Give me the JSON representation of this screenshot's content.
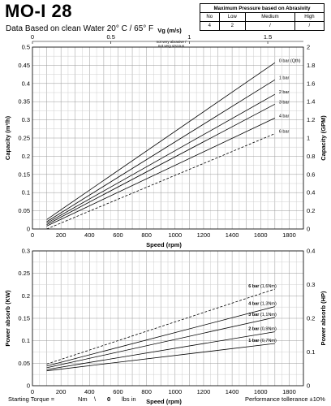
{
  "header": {
    "title": "MO-I 28",
    "subtitle": "Data Based on clean Water 20° C  /  65° F"
  },
  "abrasivity_table": {
    "title": "Maximum Pressure based on Abrasivity",
    "columns": [
      "No",
      "Low",
      "Medium",
      "High"
    ],
    "values": [
      "4",
      "2",
      "/",
      "/"
    ]
  },
  "footer": {
    "starting_torque_label": "Starting Torque =",
    "nm_unit": "Nm",
    "separator": "\\",
    "lbs_value": "0",
    "lbs_unit": "lbs  in",
    "tolerance": "Performance tollerance ±10%"
  },
  "chart_data": [
    {
      "type": "line",
      "xlabel": "Speed (rpm)",
      "ylabel": "Capacity (m³/h)",
      "ylabel_right": "Capacity (GPM)",
      "top_axis_label": "Vg (m/s)",
      "top_axis_note": [
        "not very abrasive /",
        "not very viscous"
      ],
      "xlim": [
        0,
        1900
      ],
      "ylim": [
        0,
        0.5
      ],
      "ylim_right": [
        0,
        2
      ],
      "xticks": [
        0,
        200,
        400,
        600,
        800,
        1000,
        1200,
        1400,
        1600,
        1800
      ],
      "yticks": [
        0,
        0.05,
        0.1,
        0.15,
        0.2,
        0.25,
        0.3,
        0.35,
        0.4,
        0.45,
        0.5
      ],
      "yticks_right": [
        0,
        0.2,
        0.4,
        0.6,
        0.8,
        1,
        1.2,
        1.4,
        1.6,
        1.8,
        2
      ],
      "top_ticks": [
        {
          "label": "0",
          "rpm": 0
        },
        {
          "label": "0.5",
          "rpm": 550
        },
        {
          "label": "1",
          "rpm": 1100
        },
        {
          "label": "1.5",
          "rpm": 1650
        }
      ],
      "grid": true,
      "series": [
        {
          "name": "0 bar (Qth)",
          "x": [
            100,
            1700
          ],
          "y": [
            0.026,
            0.457
          ],
          "dashed": false
        },
        {
          "name": "1 bar",
          "x": [
            100,
            1700
          ],
          "y": [
            0.02,
            0.41
          ],
          "dashed": false
        },
        {
          "name": "2 bar",
          "x": [
            100,
            1700
          ],
          "y": [
            0.016,
            0.37
          ],
          "dashed": false
        },
        {
          "name": "3 bar",
          "x": [
            100,
            1700
          ],
          "y": [
            0.012,
            0.343
          ],
          "dashed": false
        },
        {
          "name": "4 bar",
          "x": [
            100,
            1700
          ],
          "y": [
            0.008,
            0.305
          ],
          "dashed": false
        },
        {
          "name": "6 bar",
          "x": [
            100,
            1700
          ],
          "y": [
            0.0,
            0.262
          ],
          "dashed": true
        }
      ]
    },
    {
      "type": "line",
      "xlabel": "Speed (rpm)",
      "ylabel": "Power absorb (KW)",
      "ylabel_right": "Power absorb (HP)",
      "xlim": [
        0,
        1900
      ],
      "ylim": [
        0,
        0.3
      ],
      "ylim_right": [
        0,
        0.4
      ],
      "xticks": [
        0,
        200,
        400,
        600,
        800,
        1000,
        1200,
        1400,
        1600,
        1800
      ],
      "yticks": [
        0,
        0.05,
        0.1,
        0.15,
        0.2,
        0.25,
        0.3
      ],
      "yticks_right": [
        0,
        0.1,
        0.2,
        0.3,
        0.4
      ],
      "grid": true,
      "series": [
        {
          "name": "6 bar",
          "note": "(1,6Nm)",
          "x": [
            100,
            1700
          ],
          "y": [
            0.048,
            0.215
          ],
          "dashed": true
        },
        {
          "name": "4 bar",
          "note": "(1,3Nm)",
          "x": [
            100,
            1700
          ],
          "y": [
            0.044,
            0.176
          ],
          "dashed": false
        },
        {
          "name": "3 bar",
          "note": "(1,1Nm)",
          "x": [
            100,
            1700
          ],
          "y": [
            0.04,
            0.152
          ],
          "dashed": false
        },
        {
          "name": "2 bar",
          "note": "(0,9Nm)",
          "x": [
            100,
            1700
          ],
          "y": [
            0.036,
            0.12
          ],
          "dashed": false
        },
        {
          "name": "1 bar",
          "note": "(0,7Nm)",
          "x": [
            100,
            1700
          ],
          "y": [
            0.033,
            0.094
          ],
          "dashed": false
        }
      ]
    }
  ]
}
